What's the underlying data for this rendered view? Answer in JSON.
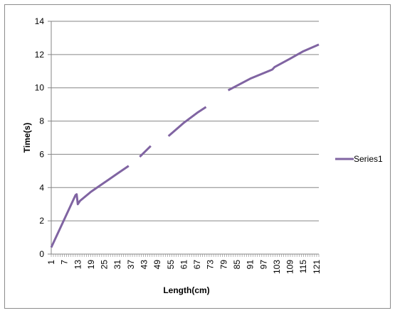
{
  "chart_data": {
    "type": "line",
    "xlabel": "Length(cm)",
    "ylabel": "Time(s)",
    "ylim": [
      0,
      14
    ],
    "yticks": [
      "0",
      "2",
      "4",
      "6",
      "8",
      "10",
      "12",
      "14"
    ],
    "xticks": [
      "1",
      "7",
      "13",
      "19",
      "25",
      "31",
      "37",
      "43",
      "49",
      "55",
      "61",
      "67",
      "73",
      "79",
      "85",
      "91",
      "97",
      "103",
      "109",
      "115",
      "121"
    ],
    "grid": "horizontal",
    "legend": "right",
    "colors": {
      "series": "#8064a2",
      "grid": "#868686",
      "axis": "#868686"
    },
    "x_domain": [
      1,
      122
    ],
    "series": [
      {
        "name": "Series1",
        "segments": [
          [
            [
              1,
              0.4
            ],
            [
              12,
              3.55
            ],
            [
              12.5,
              3.6
            ],
            [
              13,
              3.0
            ],
            [
              14,
              3.2
            ],
            [
              19,
              3.75
            ],
            [
              25,
              4.3
            ],
            [
              31,
              4.85
            ],
            [
              36,
              5.3
            ]
          ],
          [
            [
              41,
              5.85
            ],
            [
              46,
              6.5
            ]
          ],
          [
            [
              54,
              7.1
            ],
            [
              61,
              7.9
            ],
            [
              67,
              8.5
            ],
            [
              71,
              8.85
            ]
          ],
          [
            [
              81,
              9.85
            ],
            [
              91,
              10.55
            ],
            [
              101,
              11.1
            ],
            [
              102,
              11.25
            ],
            [
              109,
              11.75
            ],
            [
              115,
              12.2
            ],
            [
              122,
              12.6
            ]
          ]
        ]
      }
    ]
  }
}
